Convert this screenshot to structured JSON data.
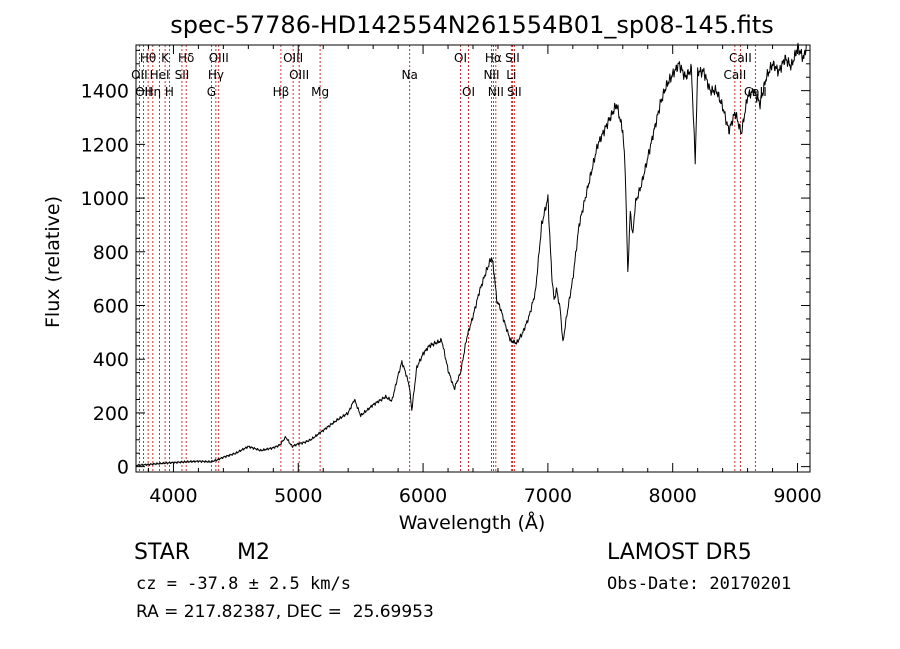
{
  "chart_data": {
    "type": "line",
    "title": "spec-57786-HD142554N261554B01_sp08-145.fits",
    "xlabel": "Wavelength (Å)",
    "ylabel": "Flux (relative)",
    "xlim": [
      3700,
      9100
    ],
    "ylim": [
      -20,
      1570
    ],
    "x_ticks": [
      4000,
      5000,
      6000,
      7000,
      8000,
      9000
    ],
    "y_ticks": [
      0,
      200,
      400,
      600,
      800,
      1000,
      1200,
      1400
    ],
    "x": [
      3700,
      3800,
      3900,
      4000,
      4100,
      4200,
      4300,
      4350,
      4400,
      4500,
      4600,
      4700,
      4800,
      4850,
      4900,
      4950,
      5000,
      5050,
      5100,
      5200,
      5300,
      5400,
      5450,
      5500,
      5600,
      5700,
      5750,
      5800,
      5830,
      5860,
      5890,
      5910,
      5950,
      6000,
      6050,
      6100,
      6150,
      6200,
      6250,
      6300,
      6350,
      6400,
      6450,
      6500,
      6550,
      6570,
      6590,
      6620,
      6650,
      6700,
      6750,
      6800,
      6850,
      6900,
      6950,
      7000,
      7030,
      7050,
      7070,
      7100,
      7120,
      7150,
      7200,
      7250,
      7300,
      7350,
      7400,
      7450,
      7500,
      7550,
      7600,
      7620,
      7640,
      7660,
      7680,
      7700,
      7750,
      7800,
      7850,
      7900,
      7950,
      8000,
      8050,
      8100,
      8150,
      8180,
      8200,
      8250,
      8300,
      8350,
      8400,
      8450,
      8500,
      8550,
      8600,
      8650,
      8700,
      8750,
      8800,
      8850,
      8900,
      8950,
      9000,
      9050,
      9070
    ],
    "y": [
      5,
      8,
      12,
      15,
      18,
      20,
      18,
      25,
      35,
      50,
      75,
      60,
      70,
      80,
      110,
      75,
      85,
      90,
      100,
      135,
      170,
      200,
      250,
      190,
      230,
      260,
      245,
      340,
      390,
      350,
      300,
      210,
      370,
      420,
      450,
      460,
      470,
      360,
      290,
      350,
      480,
      560,
      650,
      720,
      780,
      720,
      620,
      590,
      540,
      470,
      460,
      500,
      560,
      650,
      900,
      1000,
      720,
      620,
      660,
      580,
      460,
      560,
      700,
      900,
      1000,
      1100,
      1200,
      1250,
      1300,
      1350,
      1250,
      1100,
      720,
      950,
      860,
      980,
      1050,
      1150,
      1250,
      1350,
      1420,
      1460,
      1500,
      1450,
      1480,
      1140,
      1470,
      1470,
      1400,
      1400,
      1340,
      1250,
      1320,
      1240,
      1380,
      1400,
      1350,
      1450,
      1500,
      1470,
      1520,
      1490,
      1560,
      1520,
      1570
    ],
    "spectral_lines": [
      {
        "x": 3727,
        "label": "OII",
        "row": 2
      },
      {
        "x": 3760,
        "label": "OII",
        "row": 3
      },
      {
        "x": 3797,
        "label": "Hθ",
        "row": 1
      },
      {
        "x": 3835,
        "label": "Hη",
        "row": 3
      },
      {
        "x": 3889,
        "label": "HeI",
        "row": 2
      },
      {
        "x": 3933,
        "label": "K",
        "row": 1
      },
      {
        "x": 3968,
        "label": "H",
        "row": 3
      },
      {
        "x": 4068,
        "label": "SII",
        "row": 2
      },
      {
        "x": 4102,
        "label": "Hδ",
        "row": 1
      },
      {
        "x": 4304,
        "label": "G",
        "row": 3
      },
      {
        "x": 4340,
        "label": "Hγ",
        "row": 2
      },
      {
        "x": 4363,
        "label": "OIII",
        "row": 1
      },
      {
        "x": 4861,
        "label": "Hβ",
        "row": 3
      },
      {
        "x": 4959,
        "label": "OIII",
        "row": 1
      },
      {
        "x": 5007,
        "label": "OIII",
        "row": 2
      },
      {
        "x": 5175,
        "label": "Mg",
        "row": 3
      },
      {
        "x": 5893,
        "label": "Na",
        "row": 2
      },
      {
        "x": 6300,
        "label": "OI",
        "row": 1
      },
      {
        "x": 6364,
        "label": "OI",
        "row": 3
      },
      {
        "x": 6548,
        "label": "NII",
        "row": 2
      },
      {
        "x": 6563,
        "label": "Hα",
        "row": 1
      },
      {
        "x": 6583,
        "label": "NII",
        "row": 3
      },
      {
        "x": 6707,
        "label": "Li",
        "row": 2
      },
      {
        "x": 6716,
        "label": "SII",
        "row": 1
      },
      {
        "x": 6731,
        "label": "SII",
        "row": 3
      },
      {
        "x": 8498,
        "label": "CaII",
        "row": 2
      },
      {
        "x": 8542,
        "label": "CaII",
        "row": 1
      },
      {
        "x": 8662,
        "label": "CaII",
        "row": 3
      }
    ]
  },
  "info": {
    "object_class": "STAR",
    "subclass": "M2",
    "survey": "LAMOST DR5",
    "velocity": "cz = -37.8 ± 2.5 km/s",
    "obs_date": "Obs-Date: 20170201",
    "coords": "RA = 217.82387, DEC =  25.69953"
  },
  "colors": {
    "line": "#000000",
    "marker": "#c00000",
    "text": "#000000"
  }
}
